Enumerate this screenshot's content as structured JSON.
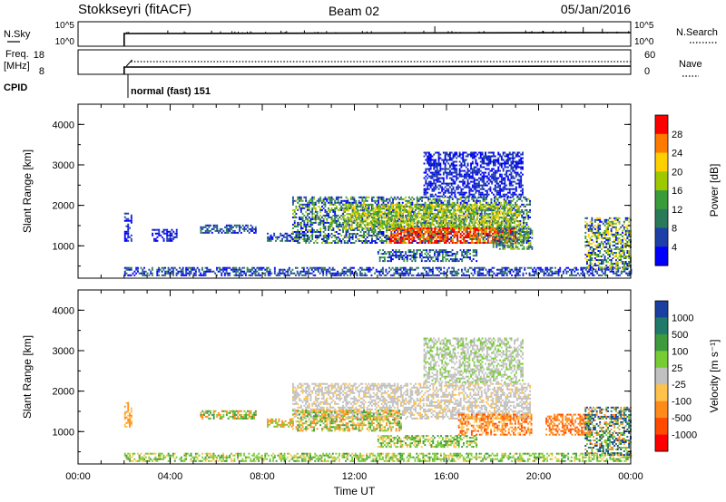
{
  "header": {
    "station": "Stokkseyri (fitACF)",
    "beam": "Beam 02",
    "date": "05/Jan/2016"
  },
  "top_panels": {
    "nsky_label": "N.Sky",
    "nsky_ticks": [
      "10^5",
      "10^0"
    ],
    "nsearch_label": "N.Search",
    "nsearch_ticks": [
      "10^5",
      "10^0"
    ],
    "freq_label": "Freq.",
    "freq_unit": "[MHz]",
    "freq_ticks": [
      "18",
      "8"
    ],
    "nave_label": "Nave",
    "nave_ticks": [
      "60",
      "0"
    ],
    "cpid_label": "CPID",
    "cpid_text": "normal (fast) 151",
    "data_start_hour": 2
  },
  "chart_data": [
    {
      "type": "heatmap",
      "name": "power",
      "ylabel": "Slant Range [km]",
      "xlabel": "",
      "yticks": [
        "4000",
        "3000",
        "2000",
        "1000"
      ],
      "xticks": [
        "00:00",
        "04:00",
        "08:00",
        "12:00",
        "16:00",
        "20:00",
        "00:00"
      ],
      "ylim": [
        200,
        4500
      ],
      "xlim": [
        0,
        24
      ],
      "colorbar": {
        "label": "Power [dB]",
        "ticks": [
          "28",
          "24",
          "20",
          "16",
          "12",
          "8",
          "4"
        ],
        "colors": [
          "#ff0000",
          "#ff7a00",
          "#ffd000",
          "#9ec800",
          "#3a9b3a",
          "#2a7a5a",
          "#1f3fa8",
          "#0000ff"
        ]
      },
      "echo_regions": [
        {
          "t0": 2.0,
          "t1": 24.0,
          "r0": 250,
          "r1": 450,
          "levels": [
            5,
            6,
            7
          ]
        },
        {
          "t0": 2.0,
          "t1": 2.3,
          "r0": 1100,
          "r1": 1800,
          "levels": [
            6,
            7
          ]
        },
        {
          "t0": 3.2,
          "t1": 4.3,
          "r0": 1100,
          "r1": 1400,
          "levels": [
            6,
            7
          ]
        },
        {
          "t0": 5.3,
          "t1": 7.7,
          "r0": 1300,
          "r1": 1500,
          "levels": [
            6,
            7,
            5
          ]
        },
        {
          "t0": 8.2,
          "t1": 9.3,
          "r0": 1100,
          "r1": 1300,
          "levels": [
            5,
            6,
            7
          ]
        },
        {
          "t0": 9.3,
          "t1": 19.6,
          "r0": 1050,
          "r1": 2200,
          "levels": [
            3,
            4,
            5,
            6,
            7
          ]
        },
        {
          "t0": 11.5,
          "t1": 19.2,
          "r0": 1400,
          "r1": 2000,
          "levels": [
            2,
            3,
            4
          ]
        },
        {
          "t0": 13.5,
          "t1": 19.0,
          "r0": 1050,
          "r1": 1450,
          "levels": [
            0,
            1,
            0,
            1
          ]
        },
        {
          "t0": 13.0,
          "t1": 17.3,
          "r0": 600,
          "r1": 900,
          "levels": [
            4,
            5,
            6,
            7
          ]
        },
        {
          "t0": 18.0,
          "t1": 19.7,
          "r0": 900,
          "r1": 1400,
          "levels": [
            3,
            4,
            5,
            6
          ]
        },
        {
          "t0": 15.0,
          "t1": 19.3,
          "r0": 2200,
          "r1": 3300,
          "levels": [
            6,
            7
          ]
        },
        {
          "t0": 22.0,
          "t1": 24.0,
          "r0": 400,
          "r1": 1700,
          "levels": [
            2,
            3,
            4,
            5,
            6,
            7
          ]
        }
      ]
    },
    {
      "type": "heatmap",
      "name": "velocity",
      "ylabel": "Slant Range [km]",
      "xlabel": "Time UT",
      "yticks": [
        "4000",
        "3000",
        "2000",
        "1000"
      ],
      "xticks": [
        "00:00",
        "04:00",
        "08:00",
        "12:00",
        "16:00",
        "20:00",
        "00:00"
      ],
      "ylim": [
        200,
        4500
      ],
      "xlim": [
        0,
        24
      ],
      "colorbar": {
        "label": "Velocity [m s⁻¹]",
        "ticks": [
          "1000",
          "500",
          "100",
          "25",
          "-25",
          "-100",
          "-500",
          "-1000"
        ],
        "colors": [
          "#1a3fa0",
          "#1f7a6a",
          "#3d9b3d",
          "#77cc33",
          "#c0c0c0",
          "#ffc24a",
          "#ff8a1a",
          "#ff4a00",
          "#ff0000"
        ]
      },
      "echo_regions": [
        {
          "t0": 2.0,
          "t1": 24.0,
          "r0": 250,
          "r1": 450,
          "levels": [
            3,
            3,
            2,
            5
          ]
        },
        {
          "t0": 2.0,
          "t1": 2.3,
          "r0": 1100,
          "r1": 1700,
          "levels": [
            5,
            6
          ]
        },
        {
          "t0": 5.3,
          "t1": 7.7,
          "r0": 1300,
          "r1": 1500,
          "levels": [
            3,
            2,
            6
          ]
        },
        {
          "t0": 8.2,
          "t1": 9.3,
          "r0": 1100,
          "r1": 1300,
          "levels": [
            6,
            3
          ]
        },
        {
          "t0": 9.3,
          "t1": 19.6,
          "r0": 1300,
          "r1": 2200,
          "levels": [
            4,
            4,
            4,
            4,
            5
          ]
        },
        {
          "t0": 9.3,
          "t1": 14.0,
          "r0": 1000,
          "r1": 1500,
          "levels": [
            3,
            6,
            5,
            2
          ]
        },
        {
          "t0": 13.0,
          "t1": 17.3,
          "r0": 600,
          "r1": 900,
          "levels": [
            3,
            5,
            2
          ]
        },
        {
          "t0": 16.5,
          "t1": 19.7,
          "r0": 900,
          "r1": 1400,
          "levels": [
            6,
            7,
            5
          ]
        },
        {
          "t0": 15.0,
          "t1": 19.3,
          "r0": 2200,
          "r1": 3300,
          "levels": [
            4,
            4,
            3
          ]
        },
        {
          "t0": 20.3,
          "t1": 22.2,
          "r0": 900,
          "r1": 1400,
          "levels": [
            6,
            7,
            6
          ]
        },
        {
          "t0": 22.0,
          "t1": 24.0,
          "r0": 400,
          "r1": 1600,
          "levels": [
            3,
            0,
            1,
            6
          ]
        }
      ]
    }
  ]
}
